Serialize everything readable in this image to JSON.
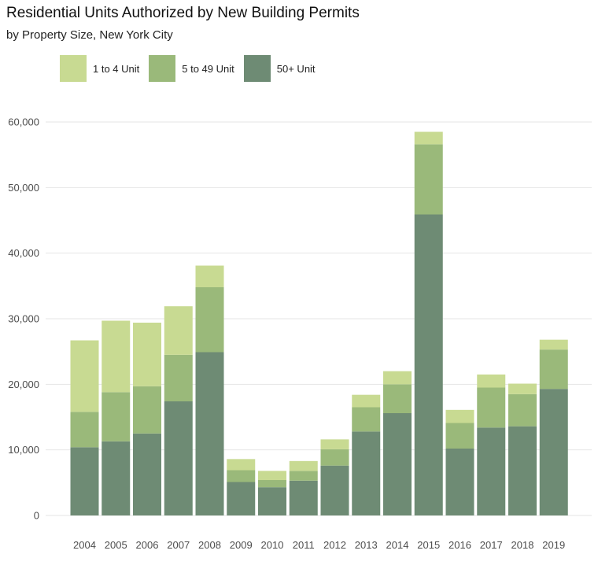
{
  "chart_data": {
    "type": "bar",
    "stacked": true,
    "title": "Residential Units Authorized by New Building Permits",
    "subtitle": "by Property Size, New York City",
    "xlabel": "",
    "ylabel": "",
    "ylim": [
      0,
      60000
    ],
    "yticks": [
      0,
      10000,
      20000,
      30000,
      40000,
      50000,
      60000
    ],
    "ytick_labels": [
      "0",
      "10,000",
      "20,000",
      "30,000",
      "40,000",
      "50,000",
      "60,000"
    ],
    "grid": "horizontal",
    "legend_position": "top-left",
    "categories": [
      "2004",
      "2005",
      "2006",
      "2007",
      "2008",
      "2009",
      "2010",
      "2011",
      "2012",
      "2013",
      "2014",
      "2015",
      "2016",
      "2017",
      "2018",
      "2019"
    ],
    "series": [
      {
        "name": "50+ Unit",
        "color": "#6e8b74",
        "values": [
          10400,
          11300,
          12500,
          17400,
          24900,
          5100,
          4300,
          5300,
          7600,
          12800,
          15600,
          45900,
          10200,
          13400,
          13600,
          19300
        ]
      },
      {
        "name": "5 to 49 Unit",
        "color": "#9ab97a",
        "values": [
          5400,
          7500,
          7200,
          7100,
          9900,
          1800,
          1100,
          1500,
          2500,
          3700,
          4400,
          10700,
          3900,
          6100,
          4900,
          6000
        ]
      },
      {
        "name": "1 to 4 Unit",
        "color": "#c8da92",
        "values": [
          10900,
          10900,
          9700,
          7400,
          3300,
          1700,
          1400,
          1500,
          1500,
          1900,
          2000,
          1900,
          2000,
          2000,
          1600,
          1500
        ]
      }
    ]
  },
  "legend": [
    {
      "label": "1 to 4 Unit",
      "color": "#c8da92"
    },
    {
      "label": "5 to 49 Unit",
      "color": "#9ab97a"
    },
    {
      "label": "50+ Unit",
      "color": "#6e8b74"
    }
  ]
}
